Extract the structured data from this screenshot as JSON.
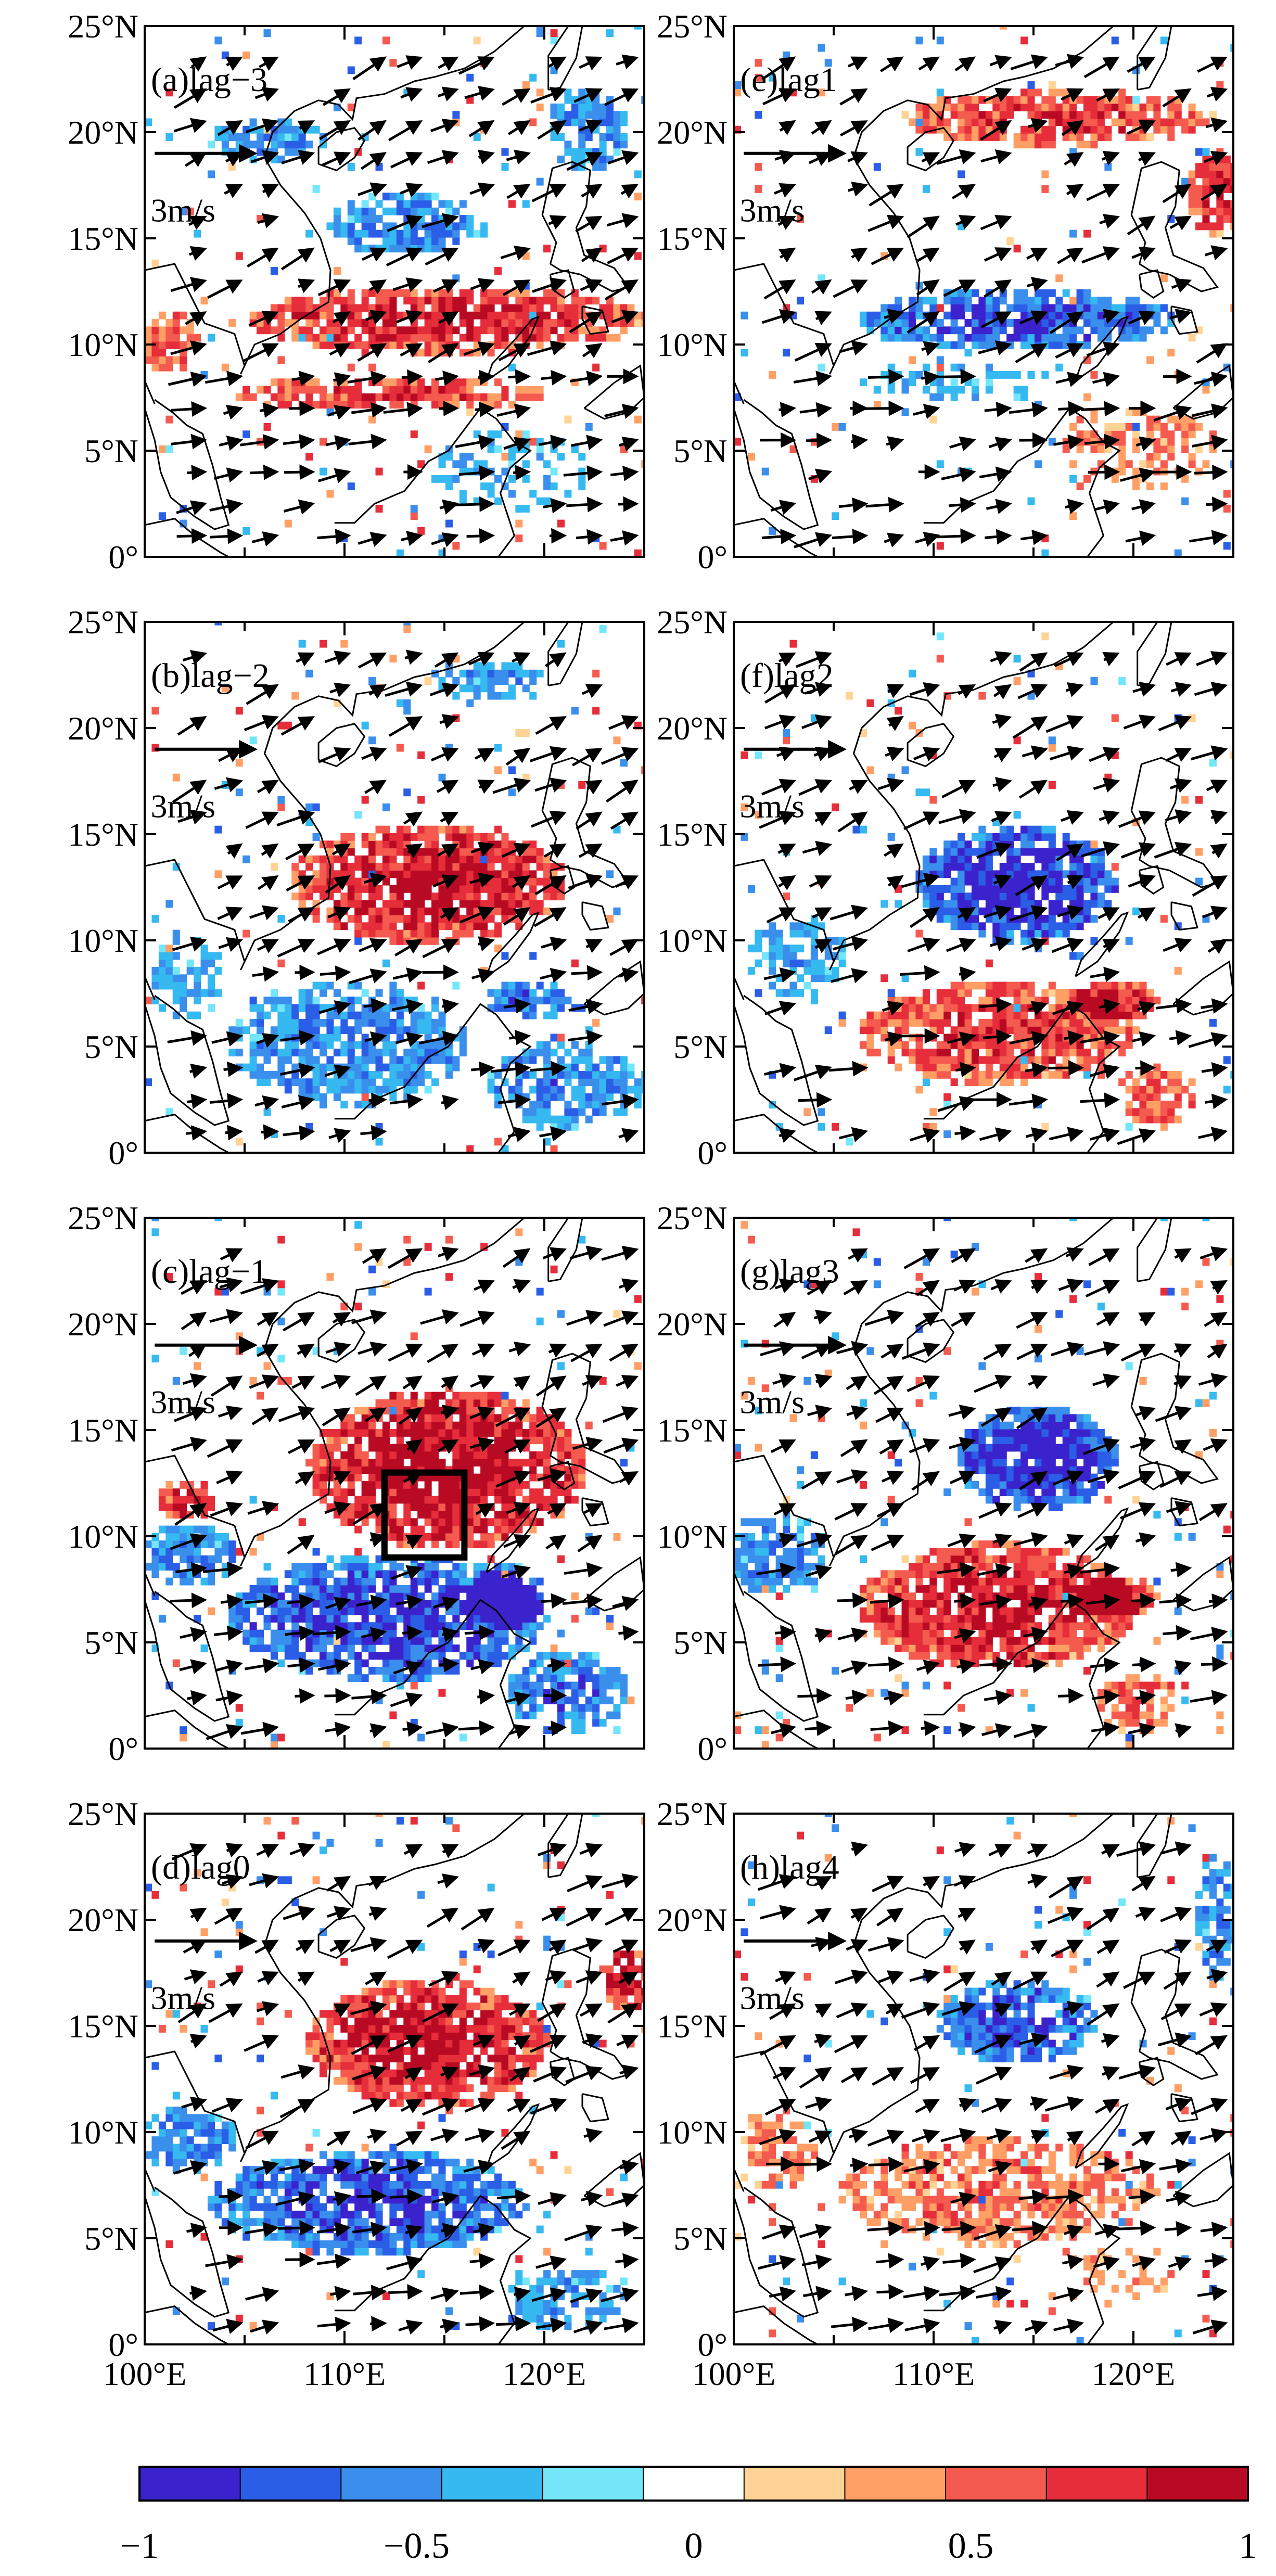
{
  "figure": {
    "lat_ticks": [
      "25°N",
      "20°N",
      "15°N",
      "10°N",
      "5°N",
      "0°"
    ],
    "lon_ticks": [
      "100°E",
      "110°E",
      "120°E"
    ],
    "reference_vector": {
      "label": "3m/s",
      "value": 3
    },
    "box": {
      "lon": [
        112,
        116
      ],
      "lat": [
        9,
        13
      ],
      "panel": "c"
    }
  },
  "panels": [
    {
      "id": "a",
      "label": "(a)lag−3",
      "lag": -3,
      "colorblobs": [
        {
          "lon": 115,
          "lat": 11,
          "rx": 10,
          "ry": 1.6,
          "v": 0.8
        },
        {
          "lon": 112,
          "lat": 7.5,
          "rx": 8,
          "ry": 0.8,
          "v": 0.7
        },
        {
          "lon": 113,
          "lat": 15.5,
          "rx": 4,
          "ry": 1.5,
          "v": -0.6
        },
        {
          "lon": 122,
          "lat": 20,
          "rx": 2,
          "ry": 2,
          "v": -0.6
        },
        {
          "lon": 106,
          "lat": 19.5,
          "rx": 3,
          "ry": 1,
          "v": -0.5
        },
        {
          "lon": 101,
          "lat": 10,
          "rx": 1.5,
          "ry": 1.5,
          "v": 0.6
        },
        {
          "lon": 118,
          "lat": 4,
          "rx": 4,
          "ry": 2,
          "v": -0.3
        }
      ]
    },
    {
      "id": "e",
      "label": "(e)lag1",
      "lag": 1,
      "colorblobs": [
        {
          "lon": 114,
          "lat": 11,
          "rx": 8,
          "ry": 1.4,
          "v": -0.8
        },
        {
          "lon": 116,
          "lat": 20.5,
          "rx": 8,
          "ry": 1.3,
          "v": 0.7
        },
        {
          "lon": 124,
          "lat": 17,
          "rx": 1.5,
          "ry": 2,
          "v": 0.8
        },
        {
          "lon": 111,
          "lat": 8,
          "rx": 5,
          "ry": 1,
          "v": -0.3
        },
        {
          "lon": 120,
          "lat": 5,
          "rx": 4,
          "ry": 2,
          "v": 0.4
        }
      ]
    },
    {
      "id": "b",
      "label": "(b)lag−2",
      "lag": -2,
      "colorblobs": [
        {
          "lon": 114,
          "lat": 12.5,
          "rx": 7,
          "ry": 2.8,
          "v": 0.9
        },
        {
          "lon": 110,
          "lat": 5,
          "rx": 6,
          "ry": 3,
          "v": -0.6
        },
        {
          "lon": 119,
          "lat": 7,
          "rx": 2,
          "ry": 1,
          "v": -0.7
        },
        {
          "lon": 121,
          "lat": 3,
          "rx": 4,
          "ry": 2,
          "v": -0.6
        },
        {
          "lon": 102,
          "lat": 8,
          "rx": 2,
          "ry": 2,
          "v": -0.4
        },
        {
          "lon": 117,
          "lat": 22,
          "rx": 3,
          "ry": 1,
          "v": -0.5
        }
      ]
    },
    {
      "id": "f",
      "label": "(f)lag2",
      "lag": 2,
      "colorblobs": [
        {
          "lon": 114,
          "lat": 12.5,
          "rx": 5,
          "ry": 2.8,
          "v": -0.95
        },
        {
          "lon": 113,
          "lat": 5.5,
          "rx": 7,
          "ry": 2.5,
          "v": 0.7
        },
        {
          "lon": 119,
          "lat": 7,
          "rx": 2,
          "ry": 1,
          "v": 0.8
        },
        {
          "lon": 121,
          "lat": 2.5,
          "rx": 2,
          "ry": 1.5,
          "v": 0.6
        },
        {
          "lon": 103,
          "lat": 9,
          "rx": 2.5,
          "ry": 2,
          "v": -0.4
        }
      ]
    },
    {
      "id": "c",
      "label": "(c)lag−1",
      "lag": -1,
      "colorblobs": [
        {
          "lon": 115,
          "lat": 13,
          "rx": 7,
          "ry": 3.8,
          "v": 0.95
        },
        {
          "lon": 112,
          "lat": 6,
          "rx": 8,
          "ry": 3,
          "v": -0.85
        },
        {
          "lon": 102,
          "lat": 9,
          "rx": 2.5,
          "ry": 1.5,
          "v": -0.6
        },
        {
          "lon": 102,
          "lat": 11.5,
          "rx": 1.5,
          "ry": 1,
          "v": 0.8
        },
        {
          "lon": 121,
          "lat": 2.5,
          "rx": 3,
          "ry": 2,
          "v": -0.7
        },
        {
          "lon": 118,
          "lat": 7,
          "rx": 2,
          "ry": 1.5,
          "v": -0.8
        }
      ]
    },
    {
      "id": "g",
      "label": "(g)lag3",
      "lag": 3,
      "colorblobs": [
        {
          "lon": 115,
          "lat": 13.5,
          "rx": 4,
          "ry": 2.5,
          "v": -0.95
        },
        {
          "lon": 113,
          "lat": 6.5,
          "rx": 7,
          "ry": 3,
          "v": 0.85
        },
        {
          "lon": 119,
          "lat": 7,
          "rx": 2,
          "ry": 1,
          "v": 0.8
        },
        {
          "lon": 102,
          "lat": 9,
          "rx": 2.5,
          "ry": 2,
          "v": -0.6
        },
        {
          "lon": 120,
          "lat": 2,
          "rx": 2,
          "ry": 1.5,
          "v": 0.6
        }
      ]
    },
    {
      "id": "d",
      "label": "(d)lag0",
      "lag": 0,
      "colorblobs": [
        {
          "lon": 114,
          "lat": 14,
          "rx": 6,
          "ry": 3,
          "v": 0.9
        },
        {
          "lon": 111,
          "lat": 6.5,
          "rx": 8,
          "ry": 2.5,
          "v": -0.8
        },
        {
          "lon": 102,
          "lat": 9.5,
          "rx": 2.5,
          "ry": 1.5,
          "v": -0.6
        },
        {
          "lon": 124,
          "lat": 17,
          "rx": 1.5,
          "ry": 1.5,
          "v": 0.9
        },
        {
          "lon": 121,
          "lat": 2,
          "rx": 3,
          "ry": 1.5,
          "v": -0.5
        }
      ]
    },
    {
      "id": "h",
      "label": "(h)lag4",
      "lag": 4,
      "colorblobs": [
        {
          "lon": 114,
          "lat": 15,
          "rx": 4,
          "ry": 2,
          "v": -0.8
        },
        {
          "lon": 113,
          "lat": 7,
          "rx": 8,
          "ry": 2.5,
          "v": 0.5
        },
        {
          "lon": 119,
          "lat": 3,
          "rx": 3,
          "ry": 1.5,
          "v": 0.3
        },
        {
          "lon": 102,
          "lat": 9,
          "rx": 2,
          "ry": 2,
          "v": 0.4
        },
        {
          "lon": 124,
          "lat": 20,
          "rx": 1,
          "ry": 3,
          "v": -0.6
        }
      ]
    }
  ],
  "colorbar": {
    "colors": [
      "#3a22cc",
      "#2a5ee6",
      "#3a8eec",
      "#35b9f0",
      "#73e6fa",
      "#ffffff",
      "#ffd395",
      "#ff9f66",
      "#f55a4e",
      "#e62d3a",
      "#b90a24"
    ],
    "tick_labels": [
      "−1",
      "−0.5",
      "0",
      "0.5",
      "1"
    ],
    "tick_values": [
      -1,
      -0.5,
      0,
      0.5,
      1
    ]
  }
}
